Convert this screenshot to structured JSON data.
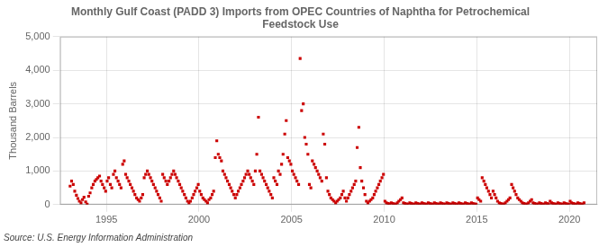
{
  "chart_data": {
    "type": "scatter",
    "title": "Monthly Gulf Coast (PADD 3) Imports from OPEC Countries of Naphtha for Petrochemical\nFeedstock Use",
    "ylabel": "Thousand Barrels",
    "annotation": "Source: U.S. Energy Information Administration",
    "color": "#cc0000",
    "marker": "square",
    "grid": true,
    "xlim": [
      1992.5,
      2021.5
    ],
    "xticks": [
      1995,
      2000,
      2005,
      2010,
      2015,
      2020
    ],
    "ylim": [
      0,
      5000
    ],
    "yticks": [
      0,
      {
        "value": 1000,
        "label": "1,000"
      },
      {
        "value": 2000,
        "label": "2,000"
      },
      {
        "value": 3000,
        "label": "3,000"
      },
      {
        "value": 4000,
        "label": "4,000"
      },
      {
        "value": 5000,
        "label": "5,000"
      }
    ],
    "x": [
      1993.04,
      1993.12,
      1993.21,
      1993.29,
      1993.38,
      1993.46,
      1993.54,
      1993.63,
      1993.71,
      1993.79,
      1993.88,
      1993.96,
      1994.04,
      1994.12,
      1994.21,
      1994.29,
      1994.38,
      1994.46,
      1994.54,
      1994.63,
      1994.71,
      1994.79,
      1994.88,
      1994.96,
      1995.04,
      1995.12,
      1995.21,
      1995.29,
      1995.38,
      1995.46,
      1995.54,
      1995.63,
      1995.71,
      1995.79,
      1995.88,
      1995.96,
      1996.04,
      1996.12,
      1996.21,
      1996.29,
      1996.38,
      1996.46,
      1996.54,
      1996.63,
      1996.71,
      1996.79,
      1996.88,
      1996.96,
      1997.04,
      1997.12,
      1997.21,
      1997.29,
      1997.38,
      1997.46,
      1997.54,
      1997.63,
      1997.71,
      1997.79,
      1997.88,
      1997.96,
      1998.04,
      1998.12,
      1998.21,
      1998.29,
      1998.38,
      1998.46,
      1998.54,
      1998.63,
      1998.71,
      1998.79,
      1998.88,
      1998.96,
      1999.04,
      1999.12,
      1999.21,
      1999.29,
      1999.38,
      1999.46,
      1999.54,
      1999.63,
      1999.71,
      1999.79,
      1999.88,
      1999.96,
      2000.04,
      2000.12,
      2000.21,
      2000.29,
      2000.38,
      2000.46,
      2000.54,
      2000.63,
      2000.71,
      2000.79,
      2000.88,
      2000.96,
      2001.04,
      2001.12,
      2001.21,
      2001.29,
      2001.38,
      2001.46,
      2001.54,
      2001.63,
      2001.71,
      2001.79,
      2001.88,
      2001.96,
      2002.04,
      2002.12,
      2002.21,
      2002.29,
      2002.38,
      2002.46,
      2002.54,
      2002.63,
      2002.71,
      2002.79,
      2002.88,
      2002.96,
      2003.04,
      2003.12,
      2003.21,
      2003.29,
      2003.38,
      2003.46,
      2003.54,
      2003.63,
      2003.71,
      2003.79,
      2003.88,
      2003.96,
      2004.04,
      2004.12,
      2004.21,
      2004.29,
      2004.38,
      2004.46,
      2004.54,
      2004.63,
      2004.71,
      2004.79,
      2004.88,
      2004.96,
      2005.04,
      2005.12,
      2005.21,
      2005.29,
      2005.38,
      2005.46,
      2005.54,
      2005.63,
      2005.71,
      2005.79,
      2005.88,
      2005.96,
      2006.04,
      2006.12,
      2006.21,
      2006.29,
      2006.38,
      2006.46,
      2006.54,
      2006.63,
      2006.71,
      2006.79,
      2006.88,
      2006.96,
      2007.04,
      2007.12,
      2007.21,
      2007.29,
      2007.38,
      2007.46,
      2007.54,
      2007.63,
      2007.71,
      2007.79,
      2007.88,
      2007.96,
      2008.04,
      2008.12,
      2008.21,
      2008.29,
      2008.38,
      2008.46,
      2008.54,
      2008.63,
      2008.71,
      2008.79,
      2008.88,
      2008.96,
      2009.04,
      2009.12,
      2009.21,
      2009.29,
      2009.38,
      2009.46,
      2009.54,
      2009.63,
      2009.71,
      2009.79,
      2009.88,
      2009.96,
      2010.04,
      2010.12,
      2010.21,
      2010.29,
      2010.38,
      2010.46,
      2010.54,
      2010.63,
      2010.71,
      2010.79,
      2010.88,
      2010.96,
      2011.04,
      2011.12,
      2011.21,
      2011.29,
      2011.38,
      2011.46,
      2011.54,
      2011.63,
      2011.71,
      2011.79,
      2011.88,
      2011.96,
      2012.04,
      2012.12,
      2012.21,
      2012.29,
      2012.38,
      2012.46,
      2012.54,
      2012.63,
      2012.71,
      2012.79,
      2012.88,
      2012.96,
      2013.04,
      2013.12,
      2013.21,
      2013.29,
      2013.38,
      2013.46,
      2013.54,
      2013.63,
      2013.71,
      2013.79,
      2013.88,
      2013.96,
      2014.04,
      2014.12,
      2014.21,
      2014.29,
      2014.38,
      2014.46,
      2014.54,
      2014.63,
      2014.71,
      2014.79,
      2014.88,
      2014.96,
      2015.04,
      2015.12,
      2015.21,
      2015.29,
      2015.38,
      2015.46,
      2015.54,
      2015.63,
      2015.71,
      2015.79,
      2015.88,
      2015.96,
      2016.04,
      2016.12,
      2016.21,
      2016.29,
      2016.38,
      2016.46,
      2016.54,
      2016.63,
      2016.71,
      2016.79,
      2016.88,
      2016.96,
      2017.04,
      2017.12,
      2017.21,
      2017.29,
      2017.38,
      2017.46,
      2017.54,
      2017.63,
      2017.71,
      2017.79,
      2017.88,
      2017.96,
      2018.04,
      2018.12,
      2018.21,
      2018.29,
      2018.38,
      2018.46,
      2018.54,
      2018.63,
      2018.71,
      2018.79,
      2018.88,
      2018.96,
      2019.04,
      2019.12,
      2019.21,
      2019.29,
      2019.38,
      2019.46,
      2019.54,
      2019.63,
      2019.71,
      2019.79,
      2019.88,
      2019.96,
      2020.04,
      2020.12,
      2020.21,
      2020.29,
      2020.38,
      2020.46,
      2020.54,
      2020.63,
      2020.71,
      2020.79
    ],
    "values": [
      550,
      700,
      600,
      400,
      280,
      180,
      100,
      50,
      150,
      220,
      80,
      10,
      250,
      350,
      500,
      600,
      700,
      750,
      800,
      850,
      700,
      600,
      500,
      400,
      700,
      800,
      600,
      500,
      900,
      1000,
      800,
      700,
      600,
      500,
      1200,
      1300,
      900,
      800,
      700,
      600,
      500,
      400,
      300,
      200,
      150,
      100,
      200,
      300,
      800,
      900,
      1000,
      900,
      800,
      700,
      600,
      500,
      400,
      300,
      200,
      100,
      900,
      800,
      700,
      600,
      700,
      800,
      900,
      1000,
      900,
      800,
      700,
      600,
      500,
      400,
      300,
      200,
      100,
      50,
      100,
      200,
      300,
      400,
      500,
      600,
      400,
      300,
      200,
      150,
      100,
      50,
      150,
      200,
      300,
      400,
      1400,
      1900,
      1500,
      1400,
      1300,
      1000,
      900,
      800,
      700,
      600,
      500,
      400,
      300,
      200,
      300,
      400,
      500,
      600,
      700,
      800,
      900,
      1000,
      900,
      800,
      700,
      600,
      1000,
      1500,
      2600,
      1000,
      900,
      800,
      700,
      600,
      500,
      400,
      300,
      200,
      800,
      700,
      600,
      1000,
      900,
      1200,
      1500,
      2100,
      2500,
      1400,
      1300,
      1200,
      1000,
      900,
      800,
      700,
      600,
      4350,
      2800,
      3000,
      2000,
      1800,
      1500,
      600,
      500,
      1300,
      1200,
      1100,
      1000,
      900,
      800,
      700,
      2100,
      1800,
      800,
      400,
      300,
      200,
      150,
      100,
      50,
      100,
      150,
      200,
      300,
      400,
      200,
      100,
      200,
      300,
      400,
      500,
      600,
      700,
      1700,
      2300,
      1100,
      700,
      500,
      300,
      100,
      50,
      100,
      150,
      200,
      300,
      400,
      500,
      600,
      700,
      800,
      900,
      100,
      50,
      30,
      20,
      50,
      30,
      20,
      10,
      50,
      100,
      150,
      200,
      50,
      30,
      20,
      10,
      50,
      30,
      20,
      10,
      50,
      30,
      20,
      10,
      50,
      30,
      20,
      10,
      50,
      30,
      20,
      10,
      50,
      30,
      20,
      10,
      50,
      30,
      20,
      10,
      50,
      30,
      20,
      10,
      50,
      30,
      20,
      10,
      50,
      30,
      20,
      10,
      50,
      30,
      20,
      10,
      50,
      30,
      20,
      10,
      200,
      150,
      100,
      800,
      700,
      600,
      500,
      400,
      300,
      200,
      400,
      300,
      200,
      100,
      50,
      30,
      20,
      10,
      50,
      100,
      150,
      200,
      600,
      500,
      400,
      300,
      200,
      150,
      100,
      50,
      30,
      20,
      10,
      50,
      100,
      150,
      50,
      30,
      20,
      10,
      50,
      30,
      20,
      10,
      50,
      30,
      20,
      100,
      50,
      30,
      20,
      10,
      50,
      30,
      20,
      10,
      50,
      30,
      20,
      10,
      100,
      50,
      30,
      20,
      10,
      50,
      30,
      20,
      10,
      50
    ]
  }
}
